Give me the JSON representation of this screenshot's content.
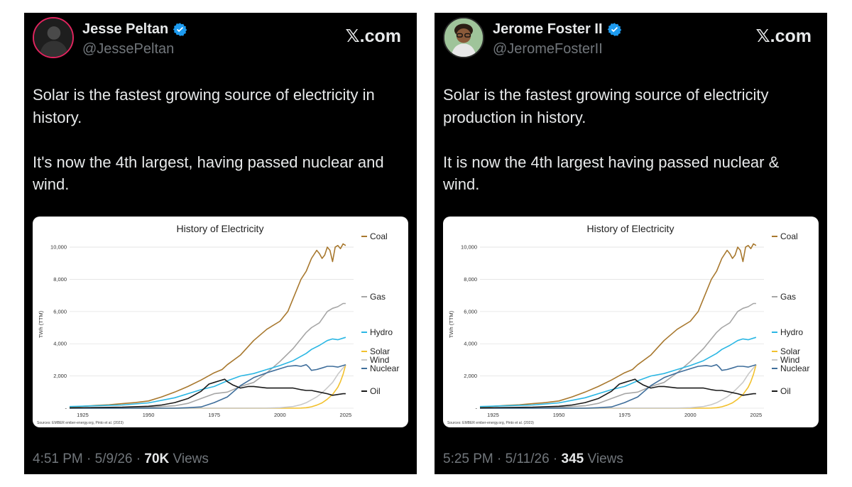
{
  "tweets": [
    {
      "author": {
        "name": "Jesse Peltan",
        "handle": "@JessePeltan",
        "verified": true
      },
      "brand": "𝕏.com",
      "text": "Solar is the fastest growing source of electricity in history.\n\nIt's now the 4th largest, having passed nuclear and wind.",
      "footer": {
        "time": "4:51 PM",
        "date": "5/9/26",
        "views": "70K",
        "views_label": "Views"
      }
    },
    {
      "author": {
        "name": "Jerome Foster II",
        "handle": "@JeromeFosterII",
        "verified": true
      },
      "brand": "𝕏.com",
      "text": "Solar is the fastest growing source of electricity production in history.\n\nIt is now the 4th largest having passed nuclear & wind.",
      "footer": {
        "time": "5:25 PM",
        "date": "5/11/26",
        "views": "345",
        "views_label": "Views"
      }
    }
  ],
  "icons": {
    "verified": "verified-badge-icon",
    "avatar": "avatar-photo"
  },
  "colors": {
    "verified": "#1d9bf0",
    "card_bg": "#000000",
    "muted": "#71767b"
  },
  "chart_data": {
    "type": "line",
    "title": "History of Electricity",
    "ylabel": "TWh (TTM)",
    "source": "Sources: EMBER ember-energy.org, Pinto et al. (2023)",
    "xlim": [
      1920,
      2028
    ],
    "ylim": [
      0,
      10400
    ],
    "x_ticks": [
      1925,
      1950,
      1975,
      2000,
      2025
    ],
    "y_ticks": [
      0,
      2000,
      4000,
      6000,
      8000,
      10000
    ],
    "y_tick_labels": [
      "-",
      "2,000",
      "4,000",
      "6,000",
      "8,000",
      "10,000"
    ],
    "series": [
      {
        "name": "Coal",
        "color": "#a8782e",
        "x": [
          1920,
          1925,
          1930,
          1935,
          1940,
          1945,
          1950,
          1955,
          1960,
          1965,
          1970,
          1975,
          1978,
          1980,
          1985,
          1990,
          1995,
          2000,
          2003,
          2005,
          2008,
          2010,
          2012,
          2014,
          2015,
          2016,
          2017,
          2018,
          2019,
          2020,
          2021,
          2022,
          2023,
          2024,
          2025
        ],
        "y": [
          60,
          120,
          170,
          210,
          280,
          350,
          450,
          700,
          1000,
          1350,
          1750,
          2200,
          2400,
          2700,
          3300,
          4200,
          4900,
          5400,
          6000,
          6800,
          8000,
          8500,
          9300,
          9800,
          9600,
          9300,
          9500,
          10000,
          9800,
          9100,
          10000,
          10100,
          9900,
          10200,
          10100
        ]
      },
      {
        "name": "Gas",
        "color": "#a6a6a6",
        "x": [
          1920,
          1940,
          1950,
          1960,
          1965,
          1970,
          1975,
          1980,
          1985,
          1990,
          1995,
          2000,
          2005,
          2010,
          2012,
          2015,
          2018,
          2020,
          2022,
          2024,
          2025
        ],
        "y": [
          0,
          30,
          60,
          150,
          300,
          600,
          900,
          1000,
          1350,
          1600,
          2200,
          2900,
          3700,
          4700,
          5000,
          5300,
          6000,
          6200,
          6300,
          6500,
          6500
        ]
      },
      {
        "name": "Hydro",
        "color": "#2bb7e4",
        "x": [
          1920,
          1930,
          1940,
          1950,
          1960,
          1970,
          1975,
          1980,
          1985,
          1990,
          1995,
          2000,
          2005,
          2010,
          2012,
          2015,
          2018,
          2020,
          2022,
          2024,
          2025
        ],
        "y": [
          100,
          150,
          200,
          330,
          650,
          1150,
          1350,
          1700,
          2000,
          2150,
          2400,
          2650,
          2950,
          3400,
          3650,
          3900,
          4200,
          4300,
          4250,
          4350,
          4400
        ]
      },
      {
        "name": "Solar",
        "color": "#f2c12e",
        "x": [
          1920,
          2005,
          2008,
          2010,
          2012,
          2014,
          2016,
          2018,
          2020,
          2022,
          2023,
          2024,
          2025
        ],
        "y": [
          0,
          0,
          10,
          30,
          90,
          190,
          330,
          560,
          850,
          1300,
          1650,
          2100,
          2700
        ]
      },
      {
        "name": "Wind",
        "color": "#c9c9c9",
        "x": [
          1920,
          1995,
          2000,
          2005,
          2008,
          2010,
          2012,
          2014,
          2016,
          2018,
          2020,
          2022,
          2024,
          2025
        ],
        "y": [
          0,
          10,
          30,
          100,
          220,
          340,
          520,
          700,
          950,
          1270,
          1600,
          2100,
          2500,
          2700
        ]
      },
      {
        "name": "Nuclear",
        "color": "#3f6e9b",
        "x": [
          1920,
          1960,
          1965,
          1970,
          1975,
          1980,
          1985,
          1990,
          1995,
          2000,
          2003,
          2006,
          2008,
          2010,
          2011,
          2012,
          2014,
          2016,
          2018,
          2020,
          2022,
          2024,
          2025
        ],
        "y": [
          0,
          0,
          30,
          80,
          350,
          700,
          1400,
          1900,
          2200,
          2450,
          2600,
          2650,
          2600,
          2700,
          2550,
          2350,
          2400,
          2500,
          2600,
          2600,
          2550,
          2650,
          2700
        ]
      },
      {
        "name": "Oil",
        "color": "#1a1a1a",
        "x": [
          1920,
          1940,
          1950,
          1955,
          1960,
          1965,
          1970,
          1973,
          1975,
          1977,
          1979,
          1980,
          1982,
          1985,
          1988,
          1990,
          1995,
          2000,
          2005,
          2008,
          2010,
          2012,
          2015,
          2018,
          2020,
          2022,
          2024,
          2025
        ],
        "y": [
          20,
          60,
          120,
          200,
          350,
          600,
          1050,
          1500,
          1600,
          1700,
          1800,
          1650,
          1450,
          1250,
          1350,
          1350,
          1250,
          1250,
          1250,
          1150,
          1100,
          1100,
          1000,
          900,
          800,
          850,
          900,
          900
        ]
      }
    ]
  }
}
